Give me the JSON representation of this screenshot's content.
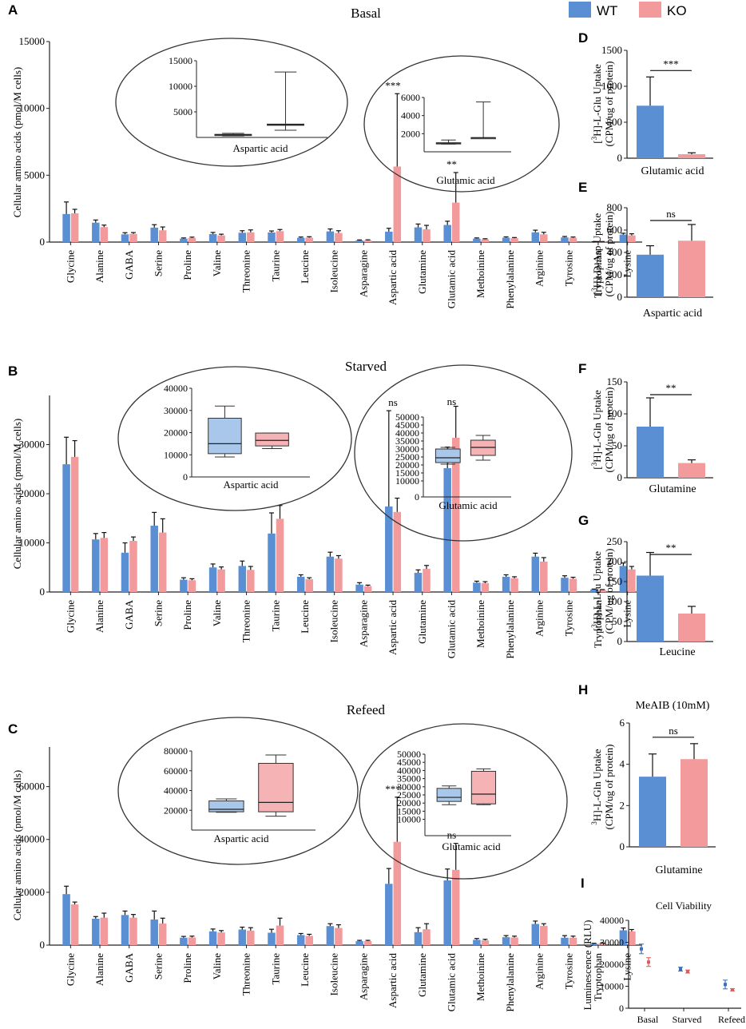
{
  "colors": {
    "wt": "#5b8fd4",
    "ko": "#f29a9c",
    "wt_box": "#a9c7ea",
    "ko_box": "#f6b3b5",
    "axis": "#222222",
    "err_wt": "#3a6fc0",
    "err_ko": "#e05a5e"
  },
  "legend": {
    "wt": "WT",
    "ko": "KO"
  },
  "panels": {
    "A": "A",
    "B": "B",
    "C": "C",
    "D": "D",
    "E": "E",
    "F": "F",
    "G": "G",
    "H": "H",
    "I": "I"
  },
  "chart_data": [
    {
      "id": "A",
      "type": "bar",
      "title": "Basal",
      "ylabel": "Cellular amino acids (pmol/M cells)",
      "ylim": [
        0,
        15000
      ],
      "yticks": [
        0,
        5000,
        10000,
        15000
      ],
      "categories": [
        "Glycine",
        "Alanine",
        "GABA",
        "Serine",
        "Proline",
        "Valine",
        "Threonine",
        "Taurine",
        "Leucine",
        "Isoleucine",
        "Asparagine",
        "Aspartic acid",
        "Glutamine",
        "Glutamic acid",
        "Methoinine",
        "Phenylalanine",
        "Arginine",
        "Tyrosine",
        "Tryptophan",
        "Lysine"
      ],
      "series": [
        {
          "name": "WT",
          "values": [
            2100,
            1450,
            580,
            1080,
            260,
            600,
            700,
            720,
            320,
            800,
            120,
            780,
            1100,
            1280,
            260,
            330,
            730,
            350,
            20,
            560
          ],
          "errors": [
            900,
            200,
            120,
            220,
            50,
            120,
            150,
            110,
            60,
            180,
            40,
            250,
            250,
            280,
            50,
            60,
            160,
            70,
            10,
            100
          ]
        },
        {
          "name": "KO",
          "values": [
            2150,
            1120,
            610,
            880,
            310,
            500,
            730,
            820,
            330,
            680,
            130,
            5650,
            950,
            2950,
            210,
            290,
            580,
            320,
            30,
            500
          ],
          "errors": [
            300,
            150,
            100,
            250,
            60,
            90,
            180,
            120,
            70,
            170,
            40,
            5450,
            300,
            2250,
            40,
            50,
            150,
            60,
            10,
            120
          ]
        }
      ],
      "annotations": [
        {
          "category": "Aspartic acid",
          "text": "***"
        },
        {
          "category": "Glutamic acid",
          "text": "**"
        }
      ],
      "insets": [
        {
          "xlabel": "Aspartic acid",
          "ylim": [
            0,
            15000
          ],
          "yticks": [
            5000,
            10000,
            15000
          ],
          "boxes": [
            {
              "name": "WT",
              "min": 300,
              "q1": 400,
              "median": 500,
              "q3": 600,
              "max": 800
            },
            {
              "name": "KO",
              "min": 1400,
              "q1": 2400,
              "median": 2500,
              "q3": 2600,
              "max": 12800
            }
          ]
        },
        {
          "xlabel": "Glutamic acid",
          "ylim": [
            0,
            6000
          ],
          "yticks": [
            2000,
            4000,
            6000
          ],
          "boxes": [
            {
              "name": "WT",
              "min": 850,
              "q1": 930,
              "median": 960,
              "q3": 1000,
              "max": 1300
            },
            {
              "name": "KO",
              "min": 1500,
              "q1": 1520,
              "median": 1550,
              "q3": 1570,
              "max": 5500
            }
          ]
        }
      ]
    },
    {
      "id": "B",
      "type": "bar",
      "title": "Starved",
      "ylabel": "Cellular amino acids (pmol/M cells)",
      "ylim": [
        0,
        40000
      ],
      "yticks": [
        0,
        10000,
        20000,
        30000
      ],
      "categories": [
        "Glycine",
        "Alanine",
        "GABA",
        "Serine",
        "Proline",
        "Valine",
        "Threonine",
        "Taurine",
        "Leucine",
        "Isoleucine",
        "Asparagine",
        "Aspartic acid",
        "Glutamine",
        "Glutamic acid",
        "Methoinine",
        "Phenylalanine",
        "Arginine",
        "Tyrosine",
        "Tryptophan",
        "Lysine"
      ],
      "series": [
        {
          "name": "WT",
          "values": [
            26000,
            10700,
            8000,
            13500,
            2500,
            5000,
            5300,
            11900,
            3100,
            7200,
            1500,
            17400,
            3900,
            25200,
            1900,
            3100,
            7200,
            2900,
            500,
            5300
          ],
          "errors": [
            5500,
            1200,
            2000,
            2700,
            400,
            700,
            1000,
            4200,
            400,
            900,
            400,
            19500,
            600,
            4300,
            300,
            400,
            700,
            400,
            100,
            600
          ]
        },
        {
          "name": "KO",
          "values": [
            27500,
            11000,
            10400,
            12100,
            2400,
            4600,
            4500,
            14900,
            2600,
            6800,
            1200,
            16300,
            4700,
            31400,
            1800,
            2800,
            6200,
            2700,
            400,
            4600
          ],
          "errors": [
            3300,
            1100,
            800,
            2800,
            300,
            500,
            700,
            2700,
            300,
            600,
            200,
            2800,
            700,
            6400,
            300,
            300,
            800,
            300,
            100,
            600
          ]
        }
      ],
      "annotations": [
        {
          "category": "Aspartic acid",
          "text": "ns"
        },
        {
          "category": "Glutamic acid",
          "text": "ns"
        }
      ],
      "insets": [
        {
          "xlabel": "Aspartic acid",
          "ylim": [
            0,
            40000
          ],
          "yticks": [
            0,
            10000,
            20000,
            30000,
            40000
          ],
          "boxes": [
            {
              "name": "WT",
              "min": 9000,
              "q1": 10500,
              "median": 15000,
              "q3": 26500,
              "max": 32000
            },
            {
              "name": "KO",
              "min": 12800,
              "q1": 14000,
              "median": 16500,
              "q3": 19800,
              "max": 19800
            }
          ]
        },
        {
          "xlabel": "Glutamic acid",
          "ylim": [
            0,
            50000
          ],
          "yticks": [
            0,
            10000,
            15000,
            20000,
            25000,
            30000,
            35000,
            40000,
            45000,
            50000
          ],
          "boxes": [
            {
              "name": "WT",
              "min": 20500,
              "q1": 21500,
              "median": 24500,
              "q3": 30000,
              "max": 31000
            },
            {
              "name": "KO",
              "min": 23000,
              "q1": 26000,
              "median": 31000,
              "q3": 35500,
              "max": 38500
            }
          ]
        }
      ]
    },
    {
      "id": "C",
      "type": "bar",
      "title": "Refeed",
      "ylabel": "Cellular amino acids (pmol/M cells)",
      "ylim": [
        0,
        75000
      ],
      "yticks": [
        0,
        20000,
        40000,
        60000
      ],
      "categories": [
        "Glycine",
        "Alanine",
        "GABA",
        "Serine",
        "Proline",
        "Valine",
        "Threonine",
        "Taurine",
        "Leucine",
        "Isoleucine",
        "Asparagine",
        "Aspartic acid",
        "Glutamine",
        "Glutamic acid",
        "Methoinine",
        "Phenylalanine",
        "Arginine",
        "Tyrosine",
        "Tryptophan",
        "Lysine"
      ],
      "series": [
        {
          "name": "WT",
          "values": [
            19300,
            10000,
            11400,
            9700,
            2800,
            5200,
            5900,
            4700,
            3800,
            7200,
            1500,
            23200,
            4900,
            24500,
            2000,
            3000,
            8000,
            2800,
            500,
            5600
          ],
          "errors": [
            3000,
            800,
            1500,
            3200,
            500,
            900,
            900,
            1300,
            600,
            900,
            300,
            5800,
            1700,
            4300,
            500,
            600,
            1100,
            800,
            200,
            900
          ]
        },
        {
          "name": "KO",
          "values": [
            15400,
            10400,
            10400,
            8200,
            2900,
            4800,
            5500,
            7400,
            3500,
            6500,
            1500,
            39100,
            6000,
            28500,
            1800,
            2900,
            7300,
            2800,
            600,
            5200
          ],
          "errors": [
            900,
            1700,
            1200,
            2000,
            500,
            700,
            1100,
            2800,
            600,
            1200,
            300,
            16900,
            2100,
            10000,
            400,
            500,
            800,
            600,
            200,
            700
          ]
        }
      ],
      "annotations": [
        {
          "category": "Aspartic acid",
          "text": "***"
        },
        {
          "category": "Glutamic acid",
          "text": "ns"
        }
      ],
      "insets": [
        {
          "xlabel": "Aspartic acid",
          "ylim": [
            0,
            80000
          ],
          "yticks": [
            20000,
            40000,
            60000,
            80000
          ],
          "boxes": [
            {
              "name": "WT",
              "min": 18000,
              "q1": 18500,
              "median": 21000,
              "q3": 29500,
              "max": 31500
            },
            {
              "name": "KO",
              "min": 14000,
              "q1": 18500,
              "median": 28000,
              "q3": 67500,
              "max": 76000
            }
          ]
        },
        {
          "xlabel": "Glutamic acid",
          "ylim": [
            0,
            50000
          ],
          "yticks": [
            10000,
            15000,
            20000,
            25000,
            30000,
            35000,
            40000,
            45000,
            50000
          ],
          "boxes": [
            {
              "name": "WT",
              "min": 19000,
              "q1": 21000,
              "median": 23500,
              "q3": 29000,
              "max": 30500
            },
            {
              "name": "KO",
              "min": 19000,
              "q1": 19500,
              "median": 25500,
              "q3": 39500,
              "max": 41000
            }
          ]
        }
      ]
    },
    {
      "id": "D",
      "type": "bar",
      "ylabel": "[3H]-L-Glu Uptake (CPM/ug of protein)",
      "ylabel_iso": "3",
      "ylabel_pre": "[",
      "ylabel_post": "H]-L-Glu Uptake",
      "ylabel2": "(CPM/ug of protein)",
      "xlabel": "Glutamic acid",
      "ylim": [
        0,
        1500
      ],
      "yticks": [
        0,
        500,
        1000,
        1500
      ],
      "values": [
        730,
        55
      ],
      "errors": [
        400,
        20
      ],
      "sig": "***"
    },
    {
      "id": "E",
      "type": "bar",
      "ylabel": "[3H]-D-Asp Uptake (CPM/ug of protein)",
      "ylabel_iso": "3",
      "ylabel_pre": "[",
      "ylabel_post": "H]-D-Asp Uptake",
      "ylabel2": "(CPM/ug of protein)",
      "xlabel": "Aspartic acid",
      "ylim": [
        0,
        800
      ],
      "yticks": [
        0,
        200,
        400,
        600,
        800
      ],
      "values": [
        380,
        505
      ],
      "errors": [
        80,
        145
      ],
      "sig": "ns"
    },
    {
      "id": "F",
      "type": "bar",
      "ylabel": "[3H]-L-Gln Uptake (CPM/ug of protein)",
      "ylabel_iso": "3",
      "ylabel_pre": "[",
      "ylabel_post": "H]-L-Gln Uptake",
      "ylabel2": "(CPM/ug of protein)",
      "xlabel": "Glutamine",
      "ylim": [
        0,
        150
      ],
      "yticks": [
        0,
        50,
        100,
        150
      ],
      "values": [
        80,
        23
      ],
      "errors": [
        45,
        5
      ],
      "sig": "**"
    },
    {
      "id": "G",
      "type": "bar",
      "ylabel": "[3H]-L-Leu Uptake (CPM/ug of protein)",
      "ylabel_iso": "3",
      "ylabel_pre": "[",
      "ylabel_post": "H]-L-Leu Uptake",
      "ylabel2": "(CPM/ug of protein)",
      "xlabel": "Leucine",
      "ylim": [
        0,
        250
      ],
      "yticks": [
        0,
        50,
        100,
        150,
        200,
        250
      ],
      "values": [
        165,
        70
      ],
      "errors": [
        58,
        18
      ],
      "sig": "**"
    },
    {
      "id": "H",
      "type": "bar",
      "title": "MeAIB (10mM)",
      "ylabel": "3H]-L-Gln Uptake (CPM/ug of protein)",
      "ylabel_iso": "3",
      "ylabel_pre": "",
      "ylabel_post": "H]-L-Gln Uptake",
      "ylabel2": "(CPM/ug of protein)",
      "xlabel": "Glutamine",
      "ylim": [
        0,
        6
      ],
      "yticks": [
        0,
        2,
        4,
        6
      ],
      "values": [
        3.4,
        4.25
      ],
      "errors": [
        1.1,
        0.75
      ],
      "sig": "ns"
    },
    {
      "id": "I",
      "type": "scatter",
      "title": "Cell Viability",
      "ylabel": "Luminescence (RLU)",
      "categories": [
        "Basal",
        "Starved",
        "Refeed"
      ],
      "ylim": [
        0,
        40000
      ],
      "yticks": [
        0,
        10000,
        20000,
        30000,
        40000
      ],
      "series": [
        {
          "name": "WT",
          "values": [
            27000,
            17800,
            10800
          ],
          "errors": [
            2200,
            900,
            2000
          ]
        },
        {
          "name": "KO",
          "values": [
            21000,
            16700,
            8400
          ],
          "errors": [
            2000,
            700,
            500
          ]
        }
      ]
    }
  ]
}
